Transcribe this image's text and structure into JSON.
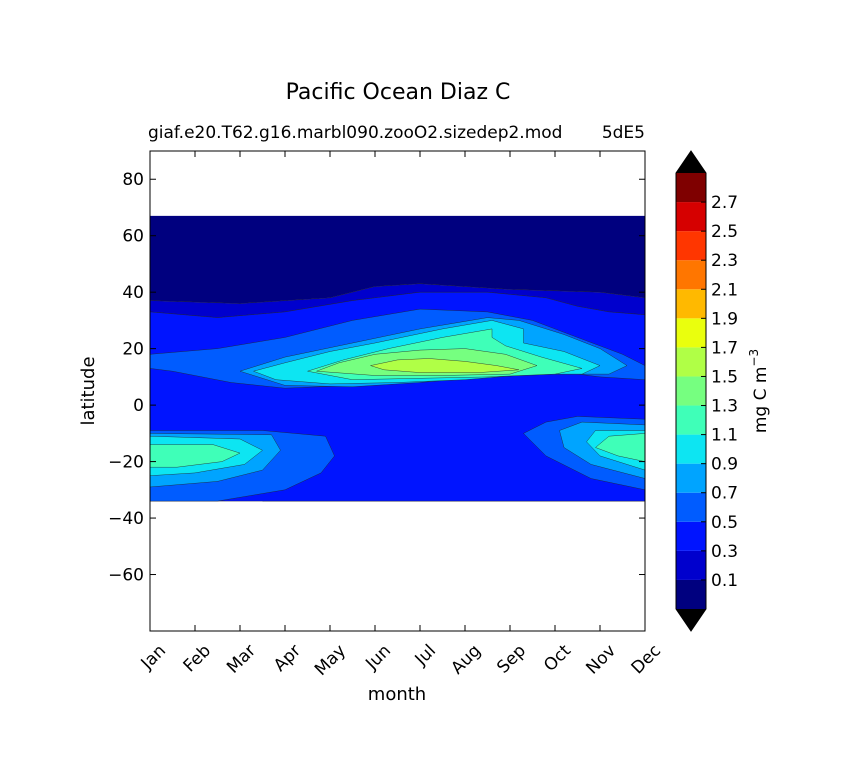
{
  "chart_data": {
    "type": "heatmap",
    "subtype": "filled-contour",
    "title": "Pacific Ocean Diaz C",
    "subtitle": "giaf.e20.T62.g16.marbl090.zooO2.sizedep2.mod",
    "subtitle_right": "5dE5",
    "xlabel": "month",
    "ylabel": "latitude",
    "x_tick_labels": [
      "Jan",
      "Feb",
      "Mar",
      "Apr",
      "May",
      "Jun",
      "Jul",
      "Aug",
      "Sep",
      "Oct",
      "Nov",
      "Dec"
    ],
    "ylim": [
      -80,
      90
    ],
    "y_ticks": [
      80,
      60,
      40,
      20,
      0,
      -20,
      -40,
      -60
    ],
    "y_tick_labels": [
      "80",
      "60",
      "40",
      "20",
      "0",
      "−20",
      "−40",
      "−60"
    ],
    "data_lat_range": [
      -34,
      67
    ],
    "colorbar": {
      "label": "mg C m",
      "label_sup": "−3",
      "levels": [
        -0.1,
        0.1,
        0.3,
        0.5,
        0.7,
        0.9,
        1.1,
        1.3,
        1.5,
        1.7,
        1.9,
        2.1,
        2.3,
        2.5,
        2.7,
        2.9
      ],
      "tick_labels": [
        "0.1",
        "0.3",
        "0.5",
        "0.7",
        "0.9",
        "1.1",
        "1.3",
        "1.5",
        "1.7",
        "1.9",
        "2.1",
        "2.3",
        "2.5",
        "2.7"
      ],
      "colors": [
        "#00007f",
        "#0000cd",
        "#0014ff",
        "#005cff",
        "#00a4ff",
        "#0de5f2",
        "#3fffb8",
        "#76ff80",
        "#b0ff46",
        "#eaff0d",
        "#ffb900",
        "#ff7600",
        "#ff3600",
        "#d60000",
        "#7f0000"
      ],
      "extend": "both",
      "under_color": "#000000",
      "over_color": "#000000"
    },
    "regions": [
      {
        "level": 0,
        "value_range": "<0.1",
        "region": "north of ~37N and band near 2N (Jan-Feb)",
        "points": [
          [
            0,
            67
          ],
          [
            11,
            67
          ],
          [
            11,
            38
          ],
          [
            10,
            40
          ],
          [
            8,
            41
          ],
          [
            6,
            43
          ],
          [
            5,
            42
          ],
          [
            4,
            38
          ],
          [
            2,
            36
          ],
          [
            0,
            37
          ]
        ]
      },
      {
        "level": 0,
        "value_range": "<0.1",
        "region": "near-equator band west",
        "points": [
          [
            0,
            2
          ],
          [
            0.8,
            2.5
          ],
          [
            0.8,
            0.8
          ],
          [
            0,
            1
          ]
        ]
      },
      {
        "level": 1,
        "value_range": "0.1-0.3",
        "region": "subtropical north",
        "points": [
          [
            0,
            37
          ],
          [
            2,
            36
          ],
          [
            4,
            38
          ],
          [
            5,
            42
          ],
          [
            6,
            43
          ],
          [
            8,
            41
          ],
          [
            10,
            40
          ],
          [
            11,
            38
          ],
          [
            11,
            32
          ],
          [
            10.2,
            33
          ],
          [
            9.5,
            35
          ],
          [
            8.8,
            38
          ],
          [
            7.5,
            40
          ],
          [
            6,
            40
          ],
          [
            4.5,
            37
          ],
          [
            3,
            33
          ],
          [
            1.5,
            31
          ],
          [
            0,
            33
          ]
        ]
      },
      {
        "level": 1,
        "value_range": "0.1-0.3",
        "region": "equatorial patch Jan",
        "points": [
          [
            0,
            9
          ],
          [
            0.8,
            10
          ],
          [
            0.8,
            5
          ],
          [
            0,
            6
          ]
        ]
      },
      {
        "level": 1,
        "value_range": "0.1-0.3",
        "region": "southern subtropics",
        "points": [
          [
            2.5,
            -34
          ],
          [
            11,
            -34
          ],
          [
            11,
            -28
          ],
          [
            10,
            -27
          ],
          [
            9,
            -25
          ],
          [
            8,
            -20
          ],
          [
            7.3,
            -16
          ],
          [
            7,
            -10
          ],
          [
            6,
            -7
          ],
          [
            5.2,
            -8
          ],
          [
            4.6,
            -12
          ],
          [
            4.5,
            -20
          ],
          [
            4.2,
            -27
          ],
          [
            3.5,
            -31
          ]
        ]
      },
      {
        "level": 2,
        "value_range": "0.3-0.5",
        "region": "tropical/subtropical background",
        "points": [
          [
            0,
            33
          ],
          [
            1.5,
            31
          ],
          [
            3,
            33
          ],
          [
            4.5,
            37
          ],
          [
            6,
            40
          ],
          [
            7.5,
            40
          ],
          [
            8.8,
            38
          ],
          [
            9.5,
            35
          ],
          [
            10.2,
            33
          ],
          [
            11,
            32
          ],
          [
            11,
            -34
          ],
          [
            0,
            -34
          ]
        ]
      },
      {
        "level": 3,
        "value_range": "0.5-0.7",
        "region": "northern gyre edge",
        "points": [
          [
            0,
            18
          ],
          [
            1.5,
            20
          ],
          [
            3,
            24
          ],
          [
            4.5,
            30
          ],
          [
            6,
            34
          ],
          [
            7.5,
            33
          ],
          [
            8.5,
            30
          ],
          [
            9.5,
            24
          ],
          [
            10.5,
            18
          ],
          [
            11,
            14
          ],
          [
            11,
            9
          ],
          [
            10,
            10
          ],
          [
            9,
            12
          ],
          [
            7.5,
            11
          ],
          [
            6,
            9
          ],
          [
            4.5,
            7
          ],
          [
            3,
            6
          ],
          [
            1.8,
            8
          ],
          [
            0.5,
            12
          ],
          [
            0,
            13
          ]
        ]
      },
      {
        "level": 3,
        "value_range": "0.5-0.7",
        "region": "southern cool band",
        "points": [
          [
            0,
            -9
          ],
          [
            2.5,
            -9
          ],
          [
            3.9,
            -11
          ],
          [
            4.1,
            -18
          ],
          [
            3.8,
            -24
          ],
          [
            3,
            -30
          ],
          [
            1.5,
            -34
          ],
          [
            0,
            -34
          ]
        ]
      },
      {
        "level": 3,
        "value_range": "0.5-0.7",
        "region": "south east Oct-Dec",
        "points": [
          [
            11,
            -5
          ],
          [
            9.5,
            -4
          ],
          [
            8.8,
            -6
          ],
          [
            8.3,
            -10
          ],
          [
            8.8,
            -18
          ],
          [
            9.8,
            -26
          ],
          [
            11,
            -30
          ]
        ]
      },
      {
        "level": 4,
        "value_range": "0.7-0.9",
        "region": "northern ring",
        "points": [
          [
            2,
            12
          ],
          [
            3,
            17
          ],
          [
            4.5,
            22
          ],
          [
            6,
            27
          ],
          [
            7.5,
            31
          ],
          [
            8.2,
            30
          ],
          [
            9.2,
            25
          ],
          [
            10,
            20
          ],
          [
            10.6,
            14
          ],
          [
            10.2,
            11
          ],
          [
            9,
            11
          ],
          [
            7.5,
            10
          ],
          [
            6,
            8
          ],
          [
            4.5,
            6.5
          ],
          [
            3,
            7
          ]
        ]
      },
      {
        "level": 4,
        "value_range": "0.7-0.9",
        "region": "southwest",
        "points": [
          [
            0,
            -10
          ],
          [
            2.7,
            -10.5
          ],
          [
            2.9,
            -16
          ],
          [
            2.5,
            -23
          ],
          [
            1.5,
            -27
          ],
          [
            0,
            -29
          ]
        ]
      },
      {
        "level": 4,
        "value_range": "0.7-0.9",
        "region": "southeast",
        "points": [
          [
            11,
            -7
          ],
          [
            9.6,
            -6
          ],
          [
            9.1,
            -9
          ],
          [
            9.2,
            -15
          ],
          [
            9.8,
            -21
          ],
          [
            11,
            -26
          ]
        ]
      },
      {
        "level": 5,
        "value_range": "0.9-1.1",
        "region": "northern core ring",
        "points": [
          [
            2.3,
            12
          ],
          [
            3,
            15
          ],
          [
            4,
            19
          ],
          [
            5,
            22
          ],
          [
            6.5,
            27
          ],
          [
            7.6,
            30
          ],
          [
            8.3,
            27
          ],
          [
            8.3,
            22
          ],
          [
            9.2,
            19
          ],
          [
            10,
            14
          ],
          [
            9.6,
            11
          ],
          [
            8.5,
            11
          ],
          [
            7,
            9
          ],
          [
            5.5,
            8
          ],
          [
            4,
            7.5
          ],
          [
            2.8,
            9
          ]
        ]
      },
      {
        "level": 5,
        "value_range": "0.9-1.1",
        "region": "southwest core",
        "points": [
          [
            0,
            -11
          ],
          [
            2,
            -12
          ],
          [
            2.5,
            -16
          ],
          [
            2.1,
            -21
          ],
          [
            1,
            -24
          ],
          [
            0,
            -25
          ]
        ]
      },
      {
        "level": 5,
        "value_range": "0.9-1.1",
        "region": "southeast core",
        "points": [
          [
            11,
            -9
          ],
          [
            9.9,
            -9
          ],
          [
            9.7,
            -13
          ],
          [
            10,
            -18
          ],
          [
            11,
            -23
          ]
        ]
      },
      {
        "level": 6,
        "value_range": "1.1-1.3",
        "region": "northern core",
        "points": [
          [
            3.5,
            12
          ],
          [
            4.3,
            16
          ],
          [
            5.3,
            20
          ],
          [
            6.5,
            24
          ],
          [
            7.6,
            27
          ],
          [
            7.6,
            24
          ],
          [
            7.9,
            21
          ],
          [
            8.7,
            17
          ],
          [
            9.6,
            13
          ],
          [
            9,
            11
          ],
          [
            7.5,
            10
          ],
          [
            6,
            9.5
          ],
          [
            4.5,
            9
          ]
        ]
      },
      {
        "level": 6,
        "value_range": "1.1-1.3",
        "region": "southwest core",
        "points": [
          [
            0,
            -14
          ],
          [
            1.4,
            -14
          ],
          [
            2,
            -17
          ],
          [
            1.6,
            -20
          ],
          [
            0.6,
            -22
          ],
          [
            0,
            -22
          ]
        ]
      },
      {
        "level": 6,
        "value_range": "1.1-1.3",
        "region": "southeast core",
        "points": [
          [
            11,
            -10
          ],
          [
            10.2,
            -11
          ],
          [
            9.9,
            -15
          ],
          [
            10.4,
            -18
          ],
          [
            11,
            -20
          ]
        ]
      },
      {
        "level": 7,
        "value_range": "1.3-1.5",
        "region": "north core",
        "points": [
          [
            3.7,
            12
          ],
          [
            4.2,
            15
          ],
          [
            5,
            18
          ],
          [
            6,
            19.5
          ],
          [
            7,
            20
          ],
          [
            7.9,
            18
          ],
          [
            8.6,
            14
          ],
          [
            8,
            11
          ],
          [
            6.5,
            10.5
          ],
          [
            5,
            10.5
          ]
        ]
      },
      {
        "level": 8,
        "value_range": "1.5-1.7",
        "region": "peak",
        "points": [
          [
            4.9,
            14
          ],
          [
            5.5,
            16
          ],
          [
            6.2,
            16.5
          ],
          [
            7,
            15.5
          ],
          [
            7.7,
            14
          ],
          [
            8.2,
            12.5
          ],
          [
            7.3,
            11.5
          ],
          [
            6,
            11.5
          ],
          [
            5.2,
            12.5
          ]
        ]
      }
    ]
  }
}
